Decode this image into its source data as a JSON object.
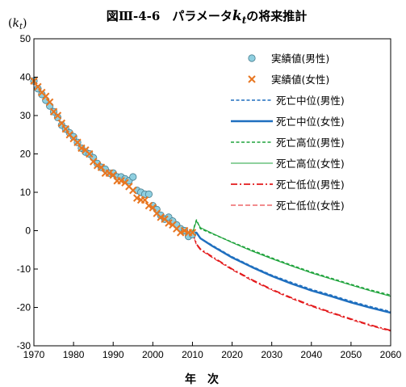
{
  "chart_data": {
    "type": "line",
    "title_main": "図Ⅲ-4-6　パラメータ",
    "title_symbol": "k",
    "title_subscript": "t",
    "title_tail": "の将来推計",
    "ylabel_open": "(",
    "ylabel_symbol": "k",
    "ylabel_subscript": "t",
    "ylabel_close": ")",
    "xlabel": "年　次",
    "xlim": [
      1970,
      2060
    ],
    "ylim": [
      -30,
      50
    ],
    "xticks": [
      "1970",
      "1980",
      "1990",
      "2000",
      "2010",
      "2020",
      "2030",
      "2040",
      "2050",
      "2060"
    ],
    "yticks": [
      "50",
      "40",
      "30",
      "20",
      "10",
      "0",
      "-10",
      "-20",
      "-30"
    ],
    "grid": false,
    "legend_position": "top-right",
    "colors": {
      "male_actual": "#8ecfe0",
      "female_actual": "#e87722",
      "medium": "#1f6fbf",
      "high": "#1fa33c",
      "low": "#e31a1c"
    },
    "series": [
      {
        "name": "実績値(男性)",
        "style": "circle",
        "x": [
          1970,
          1971,
          1972,
          1973,
          1974,
          1975,
          1976,
          1977,
          1978,
          1979,
          1980,
          1981,
          1982,
          1983,
          1984,
          1985,
          1986,
          1987,
          1988,
          1989,
          1990,
          1991,
          1992,
          1993,
          1994,
          1995,
          1996,
          1997,
          1998,
          1999,
          2000,
          2001,
          2002,
          2003,
          2004,
          2005,
          2006,
          2007,
          2008,
          2009,
          2010
        ],
        "y": [
          39,
          37,
          35.5,
          34,
          32.5,
          31,
          29.5,
          27.5,
          26.5,
          25.5,
          24.5,
          23,
          21.5,
          20.5,
          20,
          19,
          17.5,
          16.5,
          16,
          15,
          15,
          14,
          14,
          13.5,
          13,
          14,
          10.5,
          10,
          9.5,
          9.5,
          6.5,
          5.5,
          4,
          3,
          3.5,
          2.5,
          1.5,
          0.5,
          0,
          -1.5,
          -1
        ]
      },
      {
        "name": "実績値(女性)",
        "style": "x",
        "x": [
          1970,
          1971,
          1972,
          1973,
          1974,
          1975,
          1976,
          1977,
          1978,
          1979,
          1980,
          1981,
          1982,
          1983,
          1984,
          1985,
          1986,
          1987,
          1988,
          1989,
          1990,
          1991,
          1992,
          1993,
          1994,
          1995,
          1996,
          1997,
          1998,
          1999,
          2000,
          2001,
          2002,
          2003,
          2004,
          2005,
          2006,
          2007,
          2008,
          2009,
          2010
        ],
        "y": [
          39,
          37.5,
          36,
          35,
          33.5,
          31,
          30,
          28,
          26.5,
          25,
          24,
          23,
          21.5,
          21,
          20,
          18,
          17,
          16.5,
          15,
          15,
          14.5,
          13,
          13,
          12.5,
          11.5,
          10.5,
          8.5,
          8,
          8,
          6.5,
          6,
          4.5,
          3.5,
          3,
          2,
          1.5,
          0.5,
          -0.5,
          0,
          -0.5,
          -0.5
        ]
      },
      {
        "name": "死亡中位(男性)",
        "style": "dash",
        "x": [
          2010,
          2011,
          2012,
          2015,
          2020,
          2025,
          2030,
          2035,
          2040,
          2045,
          2050,
          2055,
          2060
        ],
        "y": [
          -0.5,
          -0.5,
          -2,
          -3.8,
          -6.8,
          -9.3,
          -11.6,
          -13.5,
          -15.3,
          -16.8,
          -18.4,
          -19.8,
          -21.1
        ]
      },
      {
        "name": "死亡中位(女性)",
        "style": "solid-thick",
        "x": [
          2010,
          2011,
          2012,
          2015,
          2020,
          2025,
          2030,
          2035,
          2040,
          2045,
          2050,
          2055,
          2060
        ],
        "y": [
          -0.5,
          -0.5,
          -2,
          -4,
          -7,
          -9.5,
          -11.8,
          -13.8,
          -15.6,
          -17.1,
          -18.7,
          -20.1,
          -21.4
        ]
      },
      {
        "name": "死亡高位(男性)",
        "style": "dash",
        "x": [
          2010,
          2011,
          2012,
          2015,
          2020,
          2025,
          2030,
          2035,
          2040,
          2045,
          2050,
          2055,
          2060
        ],
        "y": [
          -0.5,
          2.8,
          0.5,
          -0.8,
          -3,
          -5.1,
          -7.1,
          -9,
          -10.8,
          -12.4,
          -14,
          -15.5,
          -16.8
        ]
      },
      {
        "name": "死亡高位(女性)",
        "style": "solid-thin",
        "x": [
          2010,
          2011,
          2012,
          2015,
          2020,
          2025,
          2030,
          2035,
          2040,
          2045,
          2050,
          2055,
          2060
        ],
        "y": [
          -0.5,
          2.5,
          0.8,
          -0.7,
          -3.1,
          -5.3,
          -7.3,
          -9.2,
          -11,
          -12.6,
          -14.2,
          -15.7,
          -17.1
        ]
      },
      {
        "name": "死亡低位(男性)",
        "style": "dashdot",
        "x": [
          2010,
          2011,
          2012,
          2015,
          2020,
          2025,
          2030,
          2035,
          2040,
          2045,
          2050,
          2055,
          2060
        ],
        "y": [
          -0.5,
          -3.5,
          -4.8,
          -6.8,
          -10,
          -12.8,
          -15.3,
          -17.5,
          -19.5,
          -21.3,
          -23,
          -24.6,
          -26
        ]
      },
      {
        "name": "死亡低位(女性)",
        "style": "dash-thin",
        "x": [
          2010,
          2011,
          2012,
          2015,
          2020,
          2025,
          2030,
          2035,
          2040,
          2045,
          2050,
          2055,
          2060
        ],
        "y": [
          -0.5,
          -3.7,
          -5,
          -7,
          -10.2,
          -13,
          -15.5,
          -17.7,
          -19.7,
          -21.5,
          -23.2,
          -24.8,
          -26.2
        ]
      }
    ]
  }
}
